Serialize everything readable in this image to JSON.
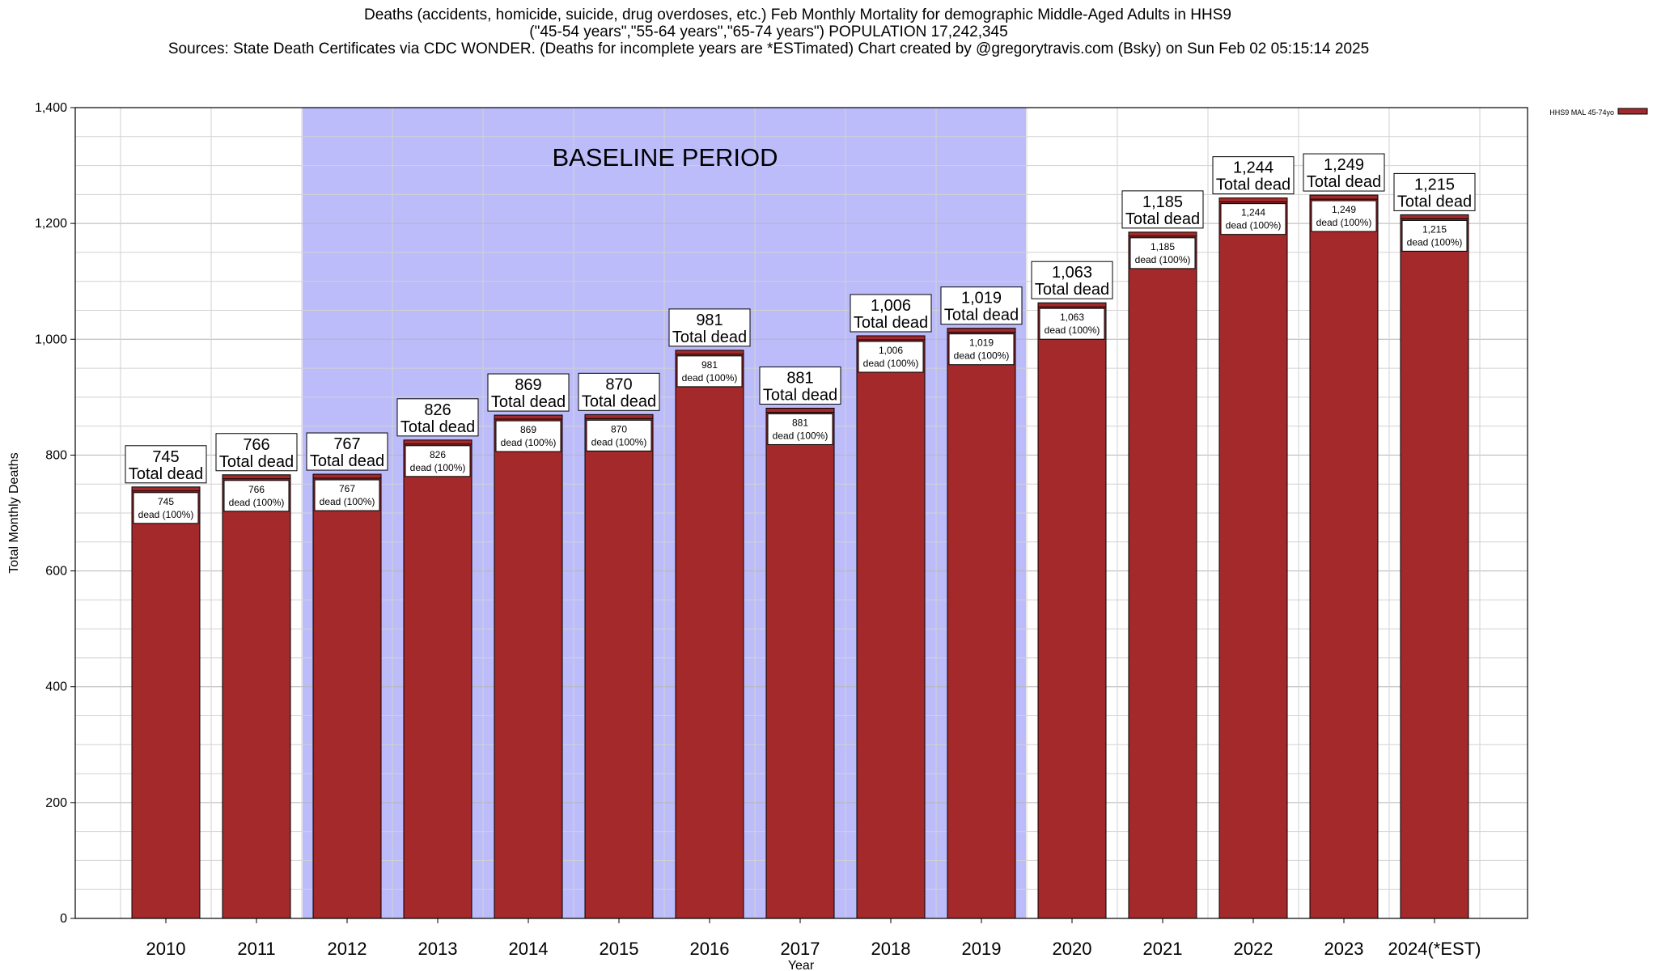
{
  "chart_data": {
    "type": "bar",
    "title_lines": [
      "Deaths (accidents, homicide, suicide, drug overdoses, etc.) Feb Monthly Mortality for demographic Middle-Aged Adults in HHS9",
      "(\"45-54 years\",\"55-64 years\",\"65-74 years\") POPULATION 17,242,345",
      "Sources: State Death Certificates via CDC WONDER. (Deaths for incomplete years are *ESTimated)                Chart created by @gregorytravis.com (Bsky) on Sun Feb 02 05:15:14 2025"
    ],
    "xlabel": "Year",
    "ylabel": "Total Monthly Deaths",
    "ylim": [
      0,
      1400
    ],
    "ytick_labels": [
      "0",
      "200",
      "400",
      "600",
      "800",
      "1,000",
      "1,200",
      "1,400"
    ],
    "categories": [
      "2010",
      "2011",
      "2012",
      "2013",
      "2014",
      "2015",
      "2016",
      "2017",
      "2018",
      "2019",
      "2020",
      "2021",
      "2022",
      "2023",
      "2024(*EST)"
    ],
    "series": [
      {
        "name": "HHS9 MAL 45-74yo",
        "color": "#a3292b",
        "values": [
          745,
          766,
          767,
          826,
          869,
          870,
          981,
          881,
          1006,
          1019,
          1063,
          1185,
          1244,
          1249,
          1215
        ]
      }
    ],
    "value_labels": [
      "745",
      "766",
      "767",
      "826",
      "869",
      "870",
      "981",
      "881",
      "1,006",
      "1,019",
      "1,063",
      "1,185",
      "1,244",
      "1,249",
      "1,215"
    ],
    "total_label_suffix": "Total dead",
    "inner_label_suffix": "dead (100%)",
    "baseline": {
      "label": "BASELINE PERIOD",
      "from": "2012",
      "to": "2019",
      "color": "#bcbcfb"
    },
    "grid": true,
    "legend_position": "top-right"
  }
}
